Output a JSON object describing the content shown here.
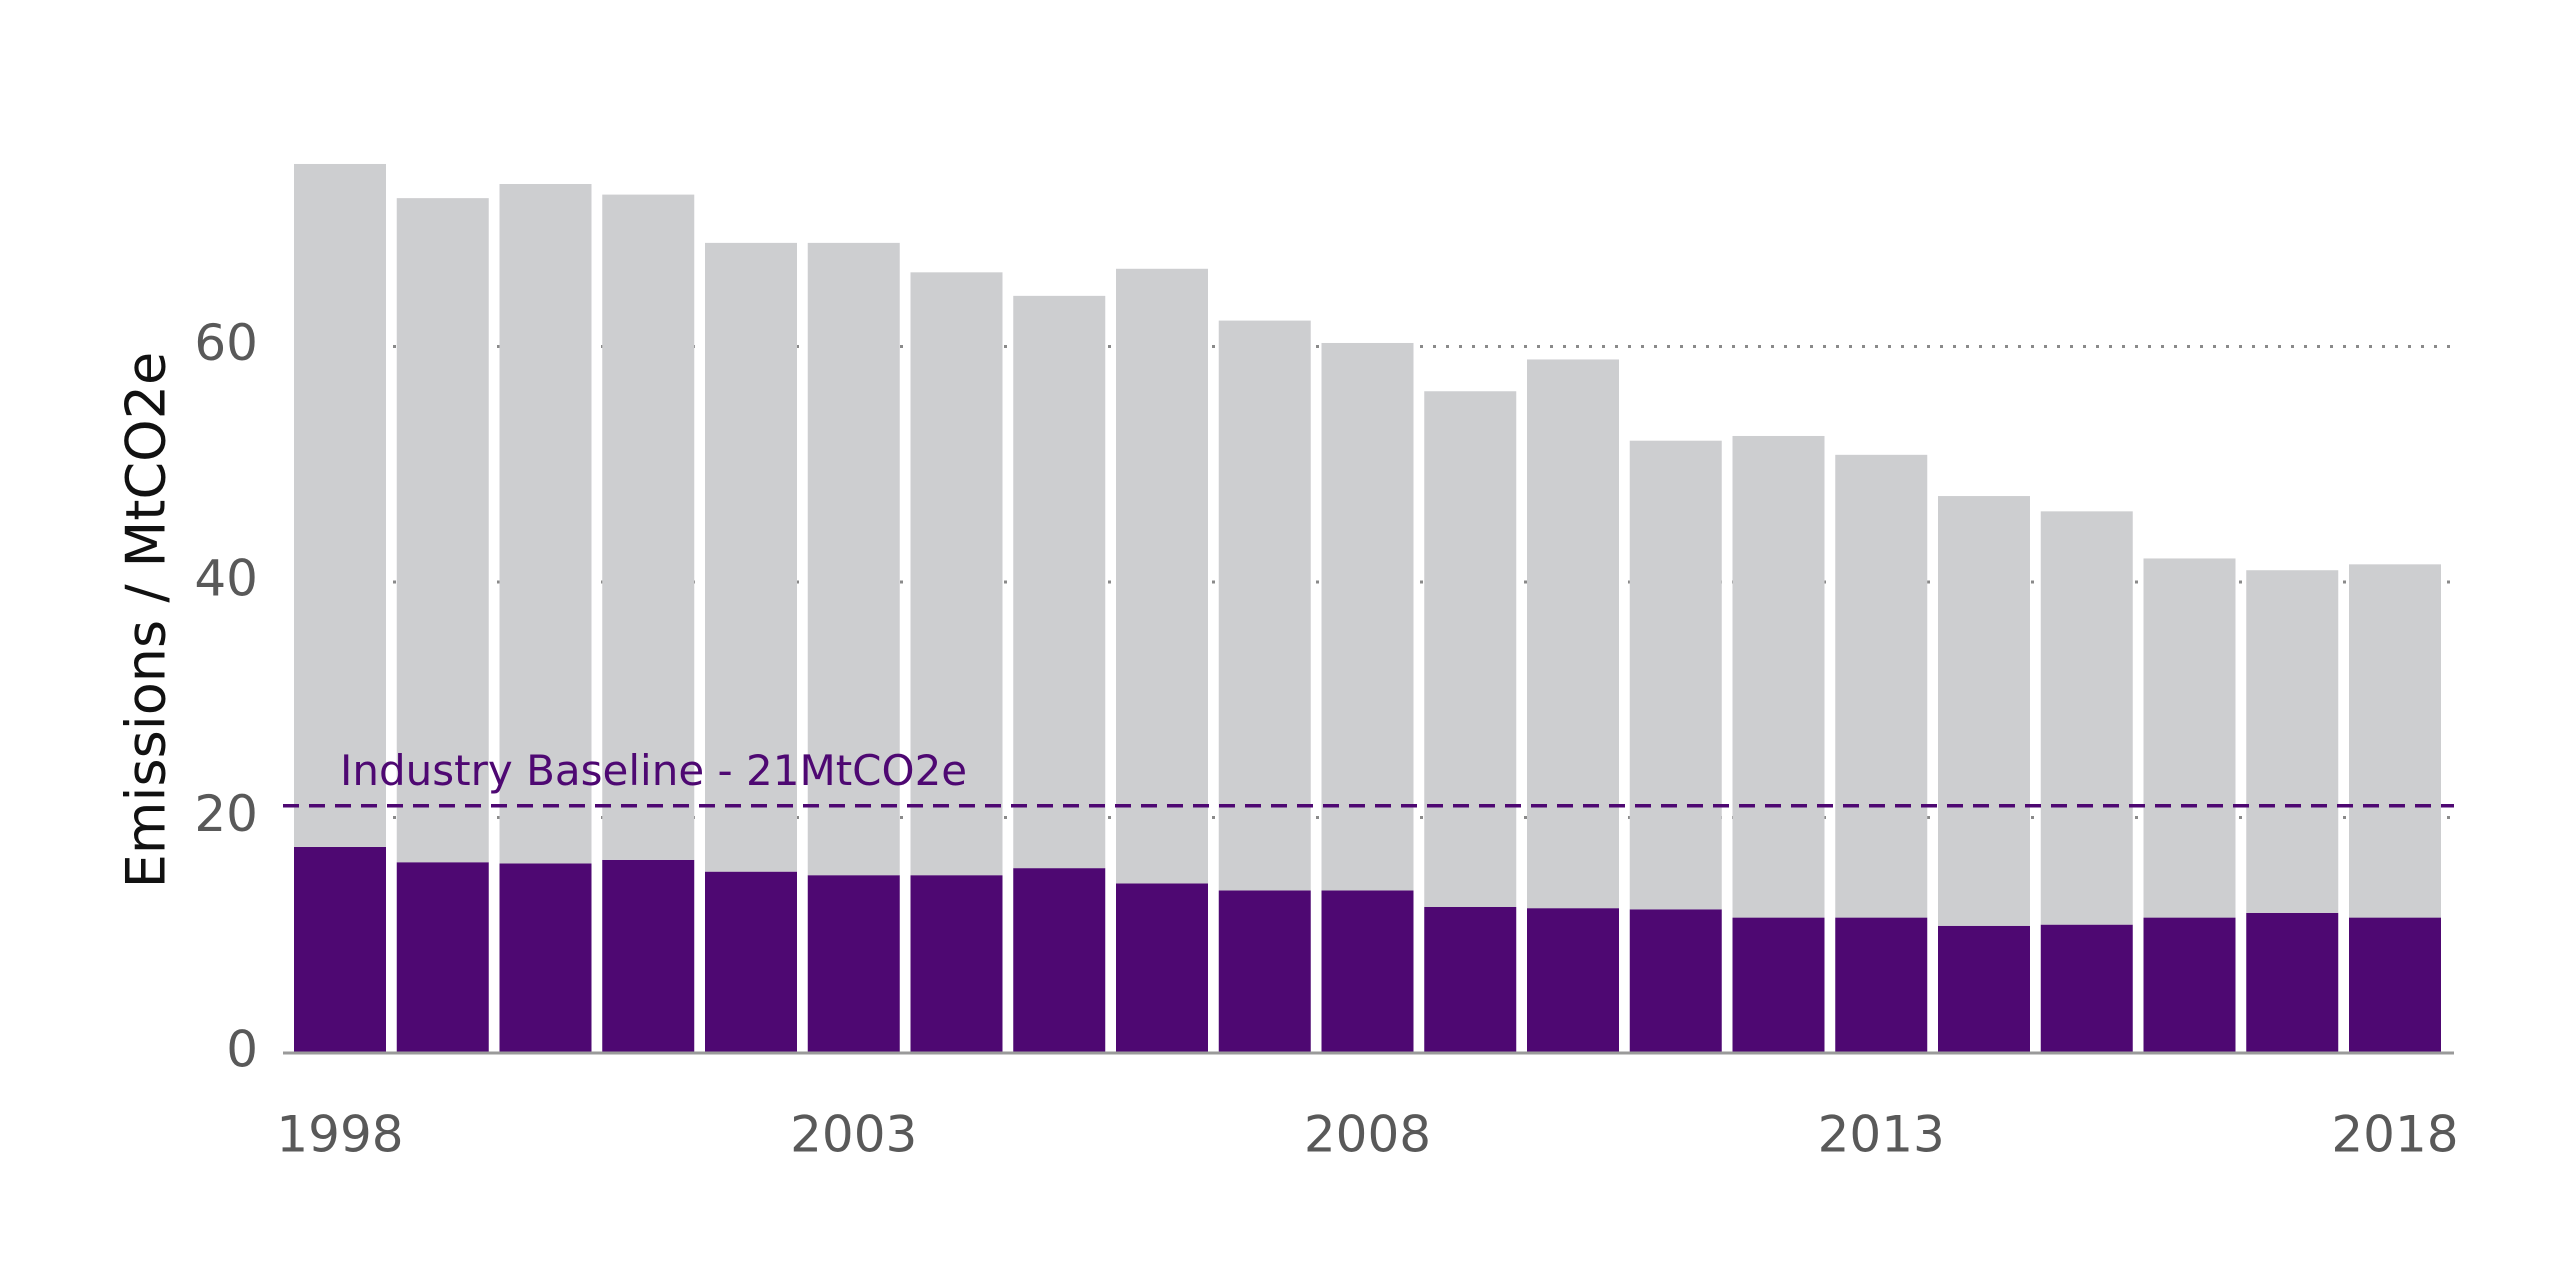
{
  "chart_data": {
    "type": "stacked-bar",
    "y_label": "Emissions / MtCO2e",
    "categories": [
      "1998",
      null,
      null,
      null,
      null,
      "2003",
      null,
      null,
      null,
      null,
      "2008",
      null,
      null,
      null,
      null,
      "2013",
      null,
      null,
      null,
      null,
      "2018"
    ],
    "series": [
      {
        "color": "#4e0872",
        "values": [
          17.5,
          16.2,
          16.1,
          16.4,
          15.4,
          15.1,
          15.1,
          15.7,
          14.4,
          13.8,
          13.8,
          12.4,
          12.3,
          12.2,
          11.5,
          11.5,
          10.8,
          10.9,
          11.5,
          11.9,
          11.5
        ]
      },
      {
        "color": "#cdced0",
        "values": [
          58.0,
          56.4,
          57.7,
          56.5,
          53.4,
          53.7,
          51.2,
          48.6,
          52.2,
          48.4,
          46.5,
          43.8,
          46.6,
          39.8,
          40.9,
          39.3,
          36.5,
          35.1,
          30.5,
          29.1,
          30.0
        ]
      }
    ],
    "ylim": [
      0,
      80
    ],
    "yticks": [
      0,
      20,
      40,
      60
    ],
    "grid": true,
    "annotations": [
      {
        "label": "Industry Baseline - 21MtCO2e",
        "value": 21,
        "color": "#4e0872"
      }
    ]
  }
}
